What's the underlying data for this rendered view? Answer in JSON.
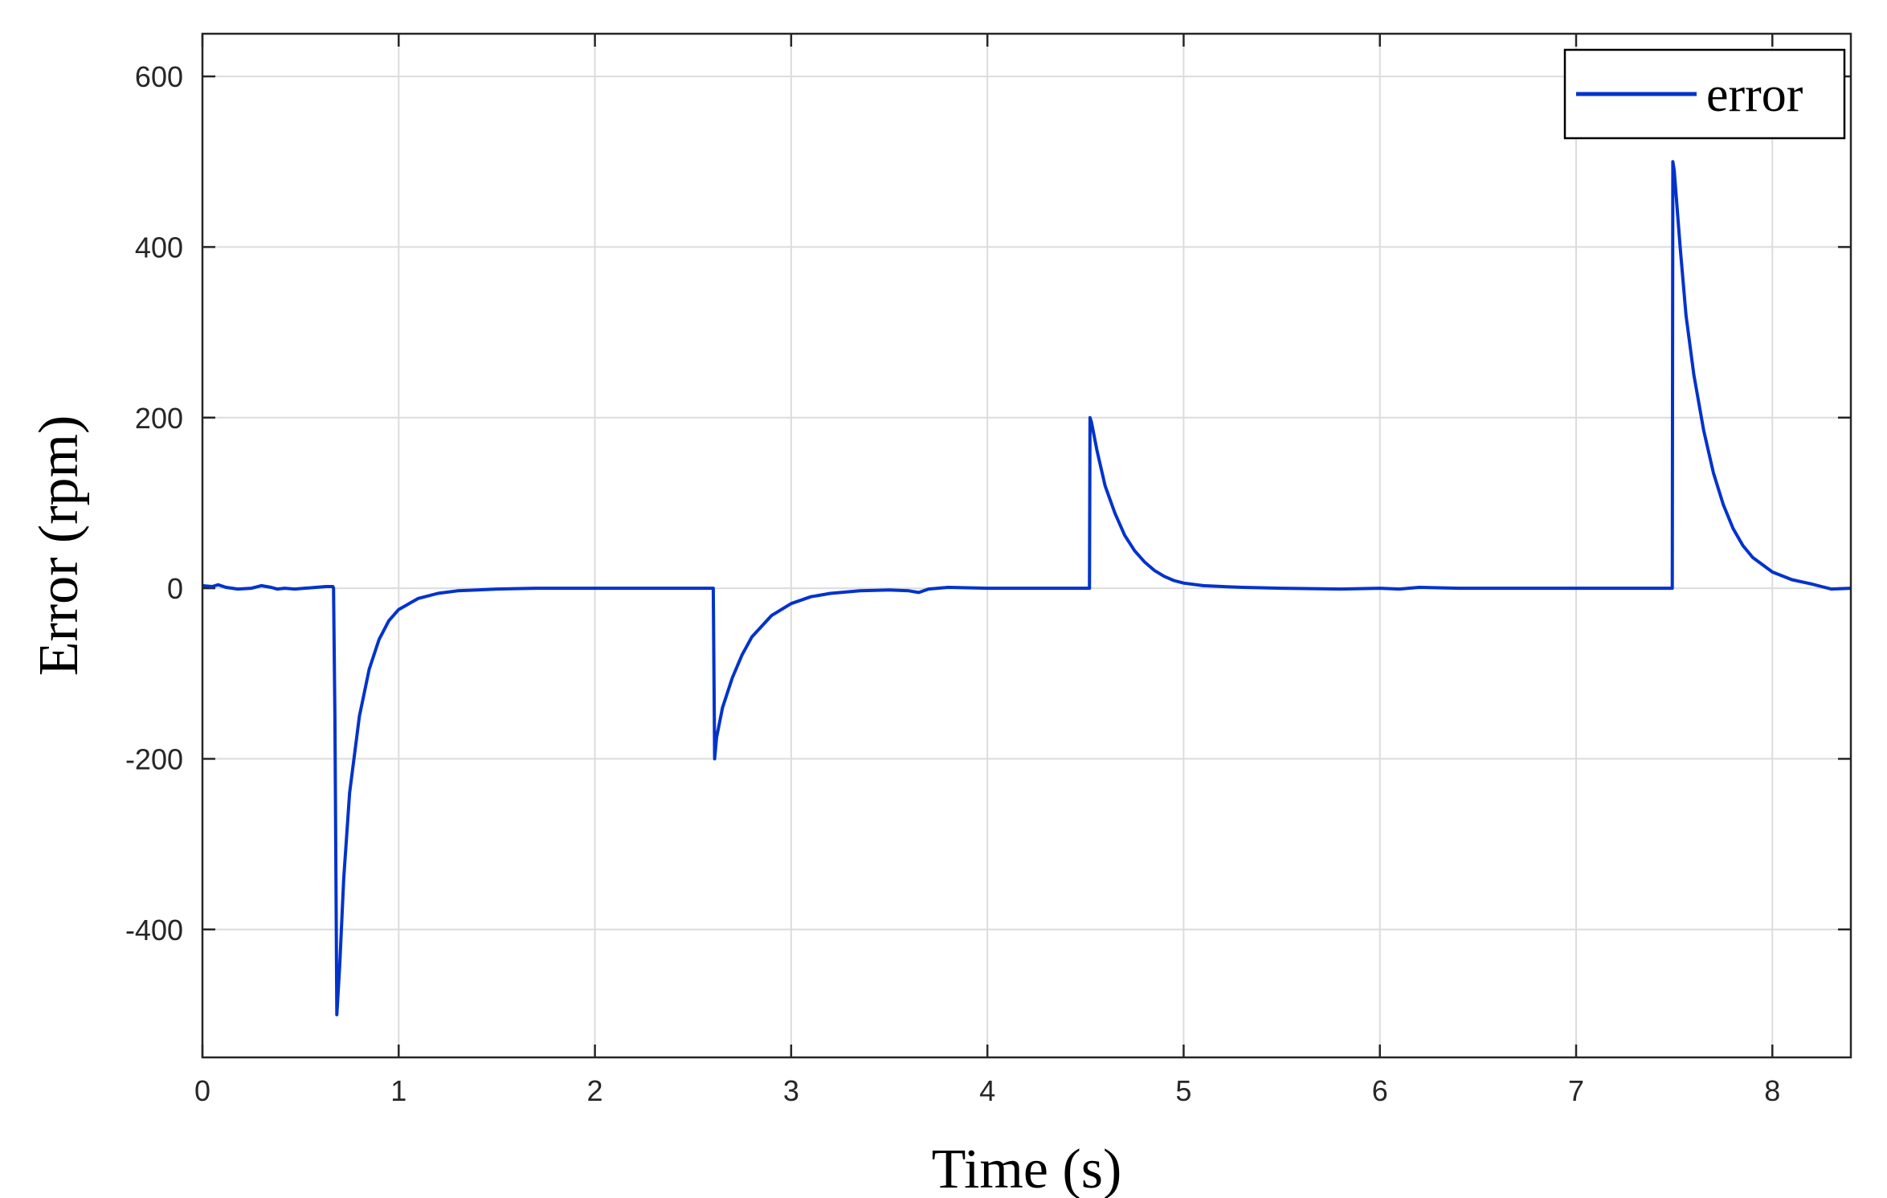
{
  "chart_data": {
    "type": "line",
    "title": "",
    "xlabel": "Time (s)",
    "ylabel": "Error (rpm)",
    "xlim": [
      0,
      8.4
    ],
    "ylim": [
      -550,
      650
    ],
    "xticks": [
      0,
      1,
      2,
      3,
      4,
      5,
      6,
      7,
      8
    ],
    "yticks": [
      -400,
      -200,
      0,
      200,
      400,
      600
    ],
    "xtick_labels": [
      "0",
      "1",
      "2",
      "3",
      "4",
      "5",
      "6",
      "7",
      "8"
    ],
    "ytick_labels": [
      "-400",
      "-200",
      "0",
      "200",
      "400",
      "600"
    ],
    "grid": true,
    "legend_position": "top-right",
    "series": [
      {
        "name": "error",
        "color": "#0033cc",
        "x": [
          0,
          0.05,
          0.08,
          0.12,
          0.18,
          0.25,
          0.3,
          0.35,
          0.38,
          0.42,
          0.47,
          0.52,
          0.58,
          0.63,
          0.665,
          0.668,
          0.675,
          0.685,
          0.7,
          0.72,
          0.75,
          0.8,
          0.85,
          0.9,
          0.95,
          1.0,
          1.1,
          1.2,
          1.3,
          1.4,
          1.5,
          1.7,
          2.0,
          2.3,
          2.6,
          2.603,
          2.61,
          2.62,
          2.65,
          2.7,
          2.75,
          2.8,
          2.9,
          3.0,
          3.1,
          3.2,
          3.35,
          3.5,
          3.6,
          3.65,
          3.7,
          3.8,
          4.0,
          4.3,
          4.5,
          4.52,
          4.523,
          4.53,
          4.56,
          4.6,
          4.65,
          4.7,
          4.75,
          4.8,
          4.85,
          4.9,
          4.95,
          5.0,
          5.1,
          5.2,
          5.3,
          5.5,
          5.8,
          6.0,
          6.1,
          6.2,
          6.4,
          6.8,
          7.2,
          7.48,
          7.49,
          7.493,
          7.5,
          7.53,
          7.56,
          7.6,
          7.65,
          7.7,
          7.75,
          7.8,
          7.85,
          7.9,
          8.0,
          8.1,
          8.2,
          8.25,
          8.3,
          8.4
        ],
        "y": [
          3,
          2,
          4,
          1,
          -1,
          0,
          3,
          1,
          -1,
          0,
          -1,
          0,
          1,
          2,
          2,
          0,
          -150,
          -500,
          -440,
          -340,
          -240,
          -150,
          -95,
          -60,
          -38,
          -25,
          -12,
          -6,
          -3,
          -2,
          -1,
          0,
          0,
          0,
          0,
          0,
          -200,
          -175,
          -140,
          -105,
          -78,
          -57,
          -32,
          -18,
          -10,
          -6,
          -3,
          -2,
          -3,
          -5,
          -1,
          1,
          0,
          0,
          0,
          0,
          200,
          195,
          160,
          120,
          88,
          62,
          44,
          31,
          21,
          14,
          9,
          6,
          3,
          2,
          1,
          0,
          -1,
          0,
          -1,
          1,
          0,
          0,
          0,
          0,
          0,
          500,
          490,
          400,
          320,
          250,
          185,
          135,
          98,
          70,
          50,
          36,
          19,
          10,
          5,
          2,
          -1,
          0
        ]
      }
    ]
  }
}
